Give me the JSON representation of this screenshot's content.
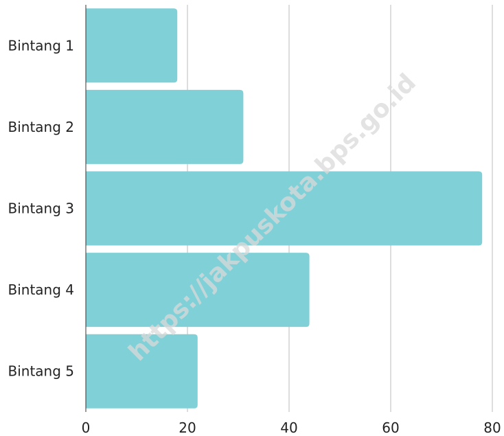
{
  "chart_data": {
    "type": "bar",
    "orientation": "horizontal",
    "categories": [
      "Bintang 1",
      "Bintang 2",
      "Bintang 3",
      "Bintang 4",
      "Bintang 5"
    ],
    "values": [
      18,
      31,
      78,
      44,
      22
    ],
    "xlim": [
      0,
      80
    ],
    "xticks": [
      0,
      20,
      40,
      60,
      80
    ],
    "title": "",
    "xlabel": "",
    "ylabel": "",
    "grid": "vertical",
    "legend": "none",
    "bar_color": "#80D0D8",
    "grid_color": "#bbbbbb",
    "text_color": "#222222"
  },
  "watermark": {
    "text": "https://jakpuskota.bps.go.id"
  }
}
